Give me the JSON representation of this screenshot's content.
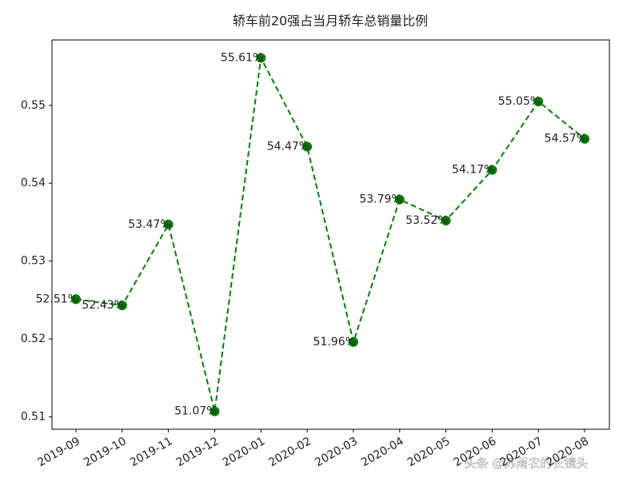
{
  "chart_data": {
    "type": "line",
    "title": "轿车前20强占当月轿车总销量比例",
    "categories": [
      "2019-09",
      "2019-10",
      "2019-11",
      "2019-12",
      "2020-01",
      "2020-02",
      "2020-03",
      "2020-04",
      "2020-05",
      "2020-06",
      "2020-07",
      "2020-08"
    ],
    "series": [
      {
        "color": "#008000",
        "values": [
          0.5251,
          0.5243,
          0.5347,
          0.5107,
          0.5561,
          0.5447,
          0.5196,
          0.5379,
          0.5352,
          0.5417,
          0.5505,
          0.5457
        ],
        "value_labels": [
          "52.51%",
          "52.43%",
          "53.47%",
          "51.07%",
          "55.61%",
          "54.47%",
          "51.96%",
          "53.79%",
          "53.52%",
          "54.17%",
          "55.05%",
          "54.57%"
        ]
      }
    ],
    "ylim": [
      0.5084,
      0.5584
    ],
    "yticks": [
      0.51,
      0.52,
      0.53,
      0.54,
      0.55
    ],
    "grid": false,
    "watermark": "头条 @苏雨农的长镜头"
  }
}
